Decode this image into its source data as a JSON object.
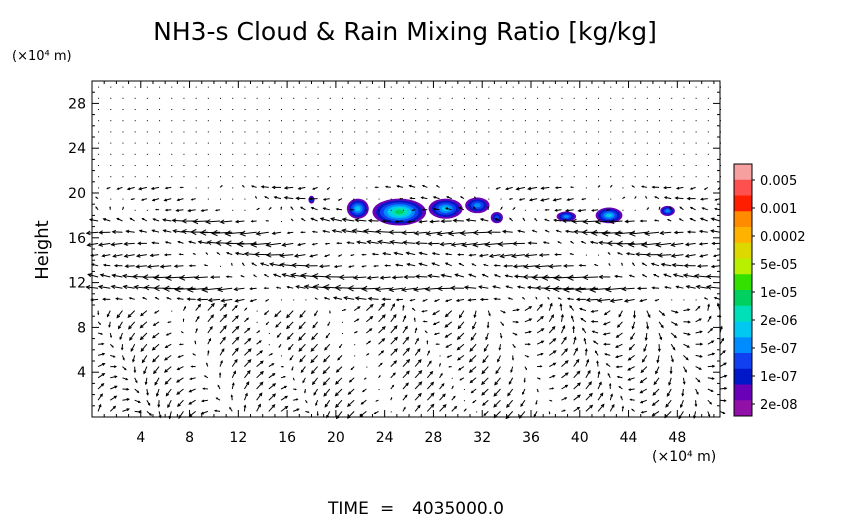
{
  "chart_data": {
    "type": "heatmap",
    "title": "NH3-s Cloud & Rain Mixing Ratio [kg/kg]",
    "ylabel": "Height",
    "y_unit": "(×10⁴ m)",
    "x_unit": "(×10⁴ m)",
    "xlim": [
      0,
      51.5
    ],
    "ylim": [
      0,
      30
    ],
    "x_ticks": [
      4,
      8,
      12,
      16,
      20,
      24,
      28,
      32,
      36,
      40,
      44,
      48
    ],
    "x_tick_labels": [
      "4",
      "8",
      "12",
      "16",
      "20",
      "24",
      "28",
      "32",
      "36",
      "40",
      "44",
      "48"
    ],
    "y_ticks": [
      4,
      8,
      12,
      16,
      20,
      24,
      28
    ],
    "y_tick_labels": [
      "4",
      "8",
      "12",
      "16",
      "20",
      "24",
      "28"
    ],
    "colorbar": {
      "labels": [
        "0.005",
        "0.001",
        "0.0002",
        "5e-05",
        "1e-05",
        "2e-06",
        "5e-07",
        "1e-07",
        "2e-08"
      ],
      "colors": [
        "#f7a0a0",
        "#ff5050",
        "#ff1f00",
        "#ff8c00",
        "#ffb300",
        "#dcd800",
        "#b8f000",
        "#33e000",
        "#00d060",
        "#00e0b8",
        "#00c8f0",
        "#008cff",
        "#1040f0",
        "#0018c8",
        "#6a00b8",
        "#9010a8"
      ]
    },
    "contours": [
      {
        "x": 18.0,
        "y": 19.4,
        "rx": 0.25,
        "ry": 0.35,
        "level": 2
      },
      {
        "x": 21.8,
        "y": 18.6,
        "rx": 0.9,
        "ry": 0.9,
        "level": 4
      },
      {
        "x": 25.2,
        "y": 18.3,
        "rx": 2.2,
        "ry": 1.2,
        "level": 6
      },
      {
        "x": 29.0,
        "y": 18.6,
        "rx": 1.4,
        "ry": 0.9,
        "level": 4
      },
      {
        "x": 31.6,
        "y": 18.9,
        "rx": 1.0,
        "ry": 0.7,
        "level": 3
      },
      {
        "x": 33.2,
        "y": 17.8,
        "rx": 0.5,
        "ry": 0.5,
        "level": 2
      },
      {
        "x": 38.9,
        "y": 17.9,
        "rx": 0.8,
        "ry": 0.45,
        "level": 3
      },
      {
        "x": 42.4,
        "y": 18.0,
        "rx": 1.1,
        "ry": 0.7,
        "level": 4
      },
      {
        "x": 47.2,
        "y": 18.4,
        "rx": 0.6,
        "ry": 0.45,
        "level": 3
      }
    ],
    "wind_layers": [
      {
        "y": 20.0,
        "u": -1.1,
        "w": 0.0
      },
      {
        "y": 18.0,
        "u": -0.8,
        "w": 0.05
      },
      {
        "y": 17.0,
        "u": -1.6,
        "w": 0.0
      },
      {
        "y": 16.0,
        "u": -2.0,
        "w": 0.0
      },
      {
        "y": 15.0,
        "u": -1.3,
        "w": 0.0
      },
      {
        "y": 14.0,
        "u": -1.0,
        "w": 0.0
      },
      {
        "y": 13.0,
        "u": -1.2,
        "w": 0.05
      },
      {
        "y": 12.0,
        "u": -2.2,
        "w": 0.0
      },
      {
        "y": 11.0,
        "u": -1.8,
        "w": 0.0
      }
    ]
  },
  "time_label": "TIME",
  "time_equals": "=",
  "time_value": "4035000.0"
}
